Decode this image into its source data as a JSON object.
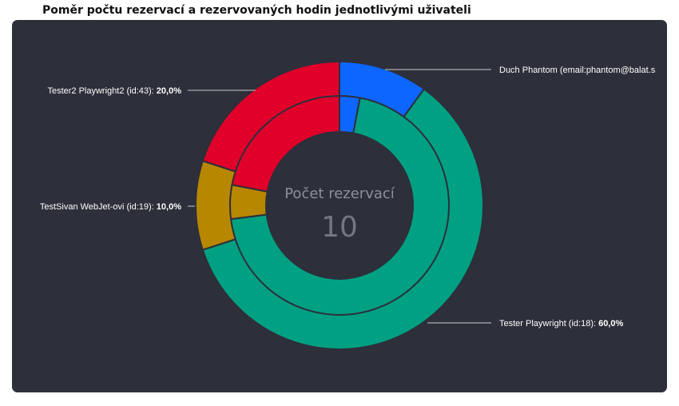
{
  "page": {
    "title": "Poměr počtu rezervací a rezervovaných hodin jednotlivými uživateli"
  },
  "chart_data": {
    "type": "pie",
    "variant": "nested-donut",
    "center": {
      "title": "Počet rezervací",
      "value": "10"
    },
    "legend": "none (callout labels)",
    "series": [
      {
        "ring": "outer",
        "slices": [
          {
            "label": "Duch Phantom (email:phantom@balat.s",
            "percent": 10,
            "color": "#0d66ff"
          },
          {
            "label": "Tester Playwright (id:18)",
            "percent": 60,
            "color": "#00a083"
          },
          {
            "label": "TestSivan WebJet-ovi (id:19)",
            "percent": 10,
            "color": "#b88700"
          },
          {
            "label": "Tester2 Playwright2 (id:43)",
            "percent": 20,
            "color": "#e0002a"
          }
        ]
      },
      {
        "ring": "inner",
        "slices": [
          {
            "label": "Duch Phantom",
            "percent": 3,
            "color": "#0d66ff"
          },
          {
            "label": "Tester Playwright",
            "percent": 70,
            "color": "#00a083"
          },
          {
            "label": "TestSivan WebJet-ovi",
            "percent": 5,
            "color": "#b88700"
          },
          {
            "label": "Tester2 Playwright2",
            "percent": 22,
            "color": "#e0002a"
          }
        ]
      }
    ],
    "callouts": [
      {
        "label": "Duch Phantom (email:phantom@balat.s",
        "value_text": ""
      },
      {
        "label": "Tester Playwright (id:18): ",
        "value_text": "60,0%"
      },
      {
        "label": "TestSivan WebJet-ovi (id:19): ",
        "value_text": "10,0%"
      },
      {
        "label": "Tester2 Playwright2 (id:43): ",
        "value_text": "20,0%"
      }
    ]
  }
}
